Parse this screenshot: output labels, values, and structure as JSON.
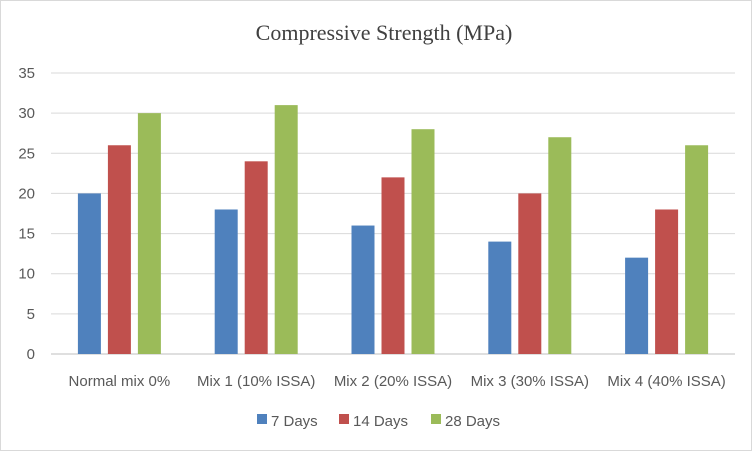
{
  "chart_data": {
    "type": "bar",
    "title": "Compressive Strength (MPa)",
    "xlabel": "",
    "ylabel": "",
    "categories": [
      "Normal mix 0%",
      "Mix 1 (10% ISSA)",
      "Mix 2 (20% ISSA)",
      "Mix 3 (30% ISSA)",
      "Mix 4 (40% ISSA)"
    ],
    "series": [
      {
        "name": "7 Days",
        "color": "#4F81BD",
        "values": [
          20,
          18,
          16,
          14,
          12
        ]
      },
      {
        "name": "14 Days",
        "color": "#C0504D",
        "values": [
          26,
          24,
          22,
          20,
          18
        ]
      },
      {
        "name": "28 Days",
        "color": "#9BBB59",
        "values": [
          30,
          31,
          28,
          27,
          26
        ]
      }
    ],
    "ylim": [
      0,
      35
    ],
    "yticks": [
      0,
      5,
      10,
      15,
      20,
      25,
      30,
      35
    ],
    "grid": true,
    "legend_position": "bottom"
  }
}
